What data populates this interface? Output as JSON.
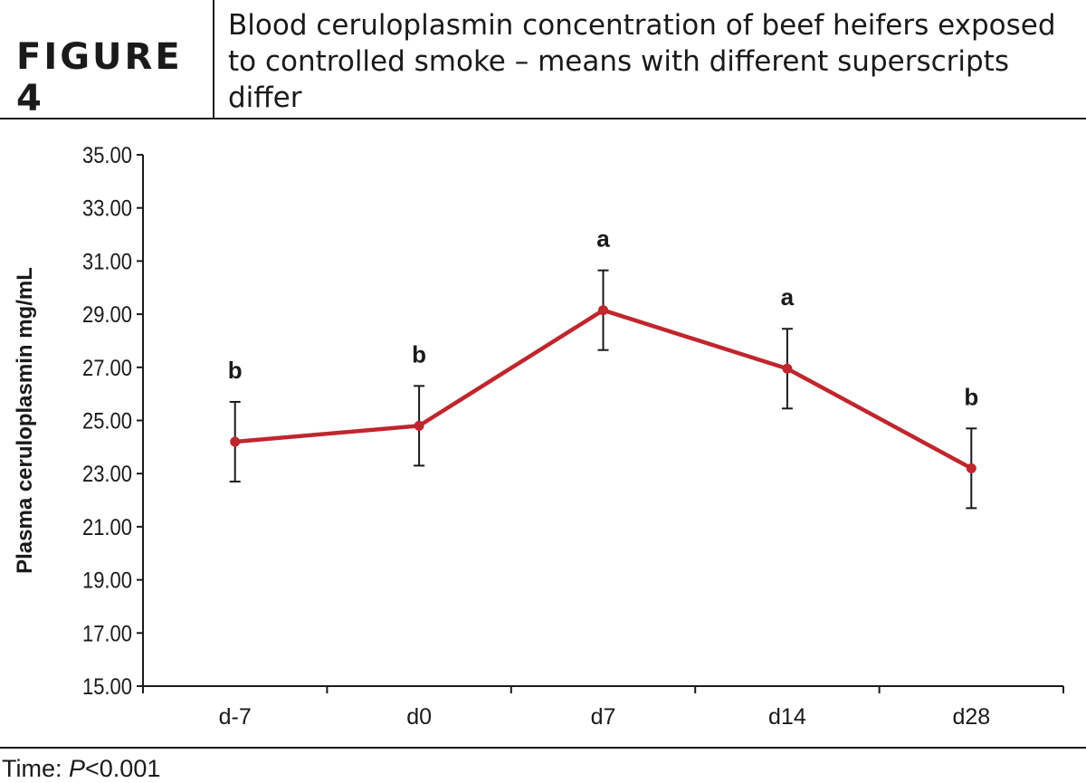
{
  "figure": {
    "label": "FIGURE 4",
    "title": "Blood ceruloplasmin concentration of beef heifers exposed to controlled smoke – means with different superscripts differ"
  },
  "footnote": {
    "prefix": "Time: ",
    "p_symbol": "P",
    "value": "<0.001"
  },
  "chart_data": {
    "type": "line",
    "title": "",
    "xlabel": "",
    "ylabel": "Plasma ceruloplasmin mg/mL",
    "categories": [
      "d-7",
      "d0",
      "d7",
      "d14",
      "d28"
    ],
    "series": [
      {
        "values": [
          24.2,
          24.8,
          29.15,
          26.95,
          23.2
        ],
        "error": [
          1.5,
          1.5,
          1.5,
          1.5,
          1.5
        ],
        "superscripts": [
          "b",
          "b",
          "a",
          "a",
          "b"
        ],
        "color": "#c0262d"
      }
    ],
    "ylim": [
      15,
      35
    ],
    "yticks": [
      "15.00",
      "17.00",
      "19.00",
      "21.00",
      "23.00",
      "25.00",
      "27.00",
      "29.00",
      "31.00",
      "33.00",
      "35.00"
    ],
    "grid": false,
    "legend": "none"
  }
}
